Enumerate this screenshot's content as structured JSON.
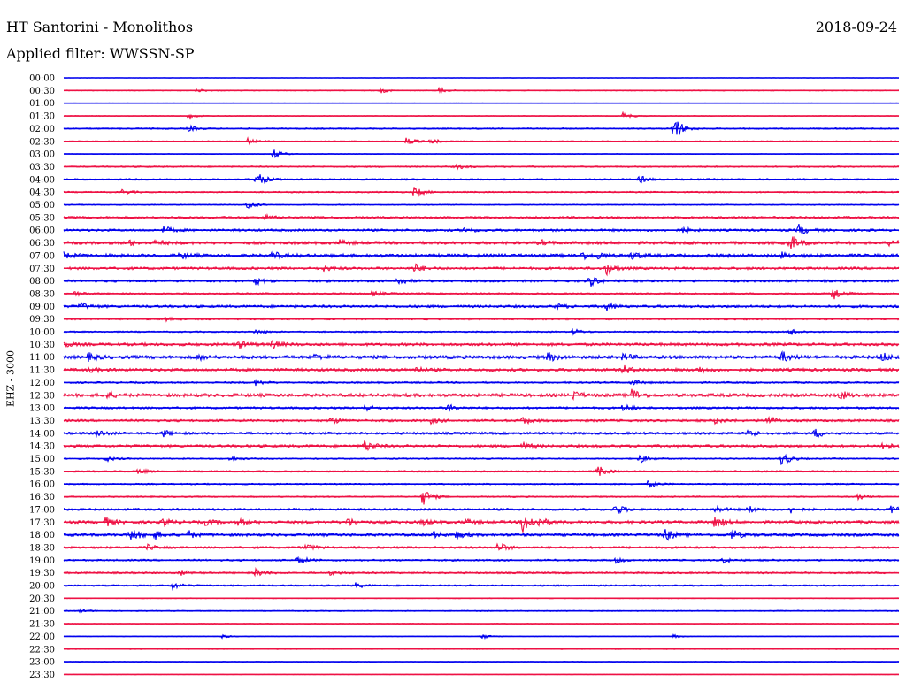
{
  "header": {
    "station": "HT Santorini - Monolithos",
    "date": "2018-09-24",
    "filter": "Applied filter: WWSSN-SP"
  },
  "chart_data": {
    "type": "line",
    "title": "HT Santorini - Monolithos",
    "subtitle": "Applied filter: WWSSN-SP",
    "ylabel": "EHZ - 3000",
    "xlabel": "",
    "grid": false,
    "series_colors": [
      "#0000ee",
      "#ee1144"
    ],
    "rows": [
      {
        "label": "00:00",
        "noise": 0.2,
        "events": []
      },
      {
        "label": "00:30",
        "noise": 0.5,
        "events": [
          [
            16,
            2
          ],
          [
            38,
            2.5
          ],
          [
            45,
            3
          ]
        ]
      },
      {
        "label": "01:00",
        "noise": 0.3,
        "events": []
      },
      {
        "label": "01:30",
        "noise": 0.4,
        "events": [
          [
            15,
            3
          ],
          [
            67,
            4
          ]
        ]
      },
      {
        "label": "02:00",
        "noise": 0.8,
        "events": [
          [
            15,
            3
          ],
          [
            73,
            16
          ]
        ]
      },
      {
        "label": "02:30",
        "noise": 0.6,
        "events": [
          [
            22,
            4
          ],
          [
            41,
            5
          ],
          [
            44,
            3
          ]
        ]
      },
      {
        "label": "03:00",
        "noise": 0.4,
        "events": [
          [
            25,
            6
          ]
        ]
      },
      {
        "label": "03:30",
        "noise": 0.8,
        "events": [
          [
            47,
            3
          ]
        ]
      },
      {
        "label": "04:00",
        "noise": 0.9,
        "events": [
          [
            23,
            10
          ],
          [
            69,
            4
          ]
        ]
      },
      {
        "label": "04:30",
        "noise": 0.8,
        "events": [
          [
            7,
            3
          ],
          [
            42,
            6
          ]
        ]
      },
      {
        "label": "05:00",
        "noise": 0.6,
        "events": [
          [
            22,
            5
          ]
        ]
      },
      {
        "label": "05:30",
        "noise": 1.2,
        "events": [
          [
            24,
            3
          ]
        ]
      },
      {
        "label": "06:00",
        "noise": 1.3,
        "events": [
          [
            12,
            4
          ],
          [
            48,
            3
          ],
          [
            74,
            3
          ],
          [
            88,
            6
          ]
        ]
      },
      {
        "label": "06:30",
        "noise": 1.6,
        "events": [
          [
            8,
            3
          ],
          [
            11,
            3
          ],
          [
            33,
            3
          ],
          [
            57,
            3
          ],
          [
            87,
            10
          ],
          [
            99,
            4
          ]
        ]
      },
      {
        "label": "07:00",
        "noise": 1.8,
        "events": [
          [
            0,
            3
          ],
          [
            14,
            3
          ],
          [
            25,
            4
          ],
          [
            62,
            4
          ],
          [
            64,
            3
          ],
          [
            68,
            4
          ],
          [
            86,
            3
          ]
        ]
      },
      {
        "label": "07:30",
        "noise": 1.4,
        "events": [
          [
            31,
            3
          ],
          [
            42,
            5
          ],
          [
            65,
            7
          ]
        ]
      },
      {
        "label": "08:00",
        "noise": 1.3,
        "events": [
          [
            23,
            4
          ],
          [
            40,
            4
          ],
          [
            63,
            6
          ]
        ]
      },
      {
        "label": "08:30",
        "noise": 1.0,
        "events": [
          [
            1,
            3
          ],
          [
            37,
            3
          ],
          [
            92,
            9
          ]
        ]
      },
      {
        "label": "09:00",
        "noise": 1.4,
        "events": [
          [
            2,
            4
          ],
          [
            59,
            3
          ],
          [
            65,
            4
          ]
        ]
      },
      {
        "label": "09:30",
        "noise": 1.0,
        "events": [
          [
            12,
            3
          ]
        ]
      },
      {
        "label": "10:00",
        "noise": 0.8,
        "events": [
          [
            23,
            3
          ],
          [
            61,
            3
          ],
          [
            87,
            4
          ]
        ]
      },
      {
        "label": "10:30",
        "noise": 1.6,
        "events": [
          [
            0,
            3
          ],
          [
            21,
            4
          ],
          [
            25,
            4
          ]
        ]
      },
      {
        "label": "11:00",
        "noise": 1.8,
        "events": [
          [
            3,
            4
          ],
          [
            16,
            3
          ],
          [
            30,
            3
          ],
          [
            58,
            5
          ],
          [
            67,
            4
          ],
          [
            86,
            6
          ],
          [
            98,
            5
          ]
        ]
      },
      {
        "label": "11:30",
        "noise": 1.6,
        "events": [
          [
            3,
            3
          ],
          [
            42,
            3
          ],
          [
            67,
            5
          ],
          [
            76,
            4
          ]
        ]
      },
      {
        "label": "12:00",
        "noise": 1.0,
        "events": [
          [
            23,
            3
          ],
          [
            68,
            3
          ]
        ]
      },
      {
        "label": "12:30",
        "noise": 1.8,
        "events": [
          [
            5,
            4
          ],
          [
            61,
            4
          ],
          [
            68,
            7
          ],
          [
            93,
            5
          ]
        ]
      },
      {
        "label": "13:00",
        "noise": 1.2,
        "events": [
          [
            36,
            4
          ],
          [
            46,
            4
          ],
          [
            67,
            4
          ]
        ]
      },
      {
        "label": "13:30",
        "noise": 1.3,
        "events": [
          [
            32,
            4
          ],
          [
            44,
            3
          ],
          [
            55,
            4
          ],
          [
            78,
            3
          ],
          [
            84,
            6
          ]
        ]
      },
      {
        "label": "14:00",
        "noise": 1.3,
        "events": [
          [
            4,
            4
          ],
          [
            12,
            4
          ],
          [
            82,
            4
          ],
          [
            90,
            5
          ]
        ]
      },
      {
        "label": "14:30",
        "noise": 1.4,
        "events": [
          [
            36,
            7
          ],
          [
            55,
            3
          ],
          [
            98,
            4
          ]
        ]
      },
      {
        "label": "15:00",
        "noise": 0.8,
        "events": [
          [
            5,
            3
          ],
          [
            20,
            3
          ],
          [
            69,
            5
          ],
          [
            86,
            8
          ]
        ]
      },
      {
        "label": "15:30",
        "noise": 0.9,
        "events": [
          [
            9,
            3
          ],
          [
            64,
            6
          ]
        ]
      },
      {
        "label": "16:00",
        "noise": 0.8,
        "events": [
          [
            70,
            4
          ]
        ]
      },
      {
        "label": "16:30",
        "noise": 0.8,
        "events": [
          [
            43,
            10
          ],
          [
            95,
            4
          ]
        ]
      },
      {
        "label": "17:00",
        "noise": 1.2,
        "events": [
          [
            66,
            7
          ],
          [
            78,
            4
          ],
          [
            82,
            4
          ],
          [
            87,
            4
          ],
          [
            99,
            4
          ]
        ]
      },
      {
        "label": "17:30",
        "noise": 1.5,
        "events": [
          [
            5,
            5
          ],
          [
            12,
            4
          ],
          [
            17,
            3
          ],
          [
            21,
            3
          ],
          [
            34,
            4
          ],
          [
            43,
            3
          ],
          [
            48,
            3
          ],
          [
            55,
            13
          ],
          [
            57,
            4
          ],
          [
            78,
            7
          ]
        ]
      },
      {
        "label": "18:00",
        "noise": 1.6,
        "events": [
          [
            8,
            8
          ],
          [
            11,
            4
          ],
          [
            15,
            4
          ],
          [
            44,
            4
          ],
          [
            47,
            4
          ],
          [
            72,
            7
          ],
          [
            80,
            6
          ]
        ]
      },
      {
        "label": "18:30",
        "noise": 1.2,
        "events": [
          [
            10,
            3
          ],
          [
            29,
            4
          ],
          [
            52,
            6
          ]
        ]
      },
      {
        "label": "19:00",
        "noise": 1.0,
        "events": [
          [
            28,
            5
          ],
          [
            66,
            3
          ],
          [
            79,
            3
          ]
        ]
      },
      {
        "label": "19:30",
        "noise": 1.0,
        "events": [
          [
            14,
            3
          ],
          [
            23,
            4
          ],
          [
            32,
            3
          ]
        ]
      },
      {
        "label": "20:00",
        "noise": 0.9,
        "events": [
          [
            13,
            4
          ],
          [
            35,
            3
          ]
        ]
      },
      {
        "label": "20:30",
        "noise": 0.4,
        "events": []
      },
      {
        "label": "21:00",
        "noise": 0.6,
        "events": [
          [
            2,
            2
          ]
        ]
      },
      {
        "label": "21:30",
        "noise": 0.4,
        "events": []
      },
      {
        "label": "22:00",
        "noise": 0.3,
        "events": [
          [
            19,
            2
          ],
          [
            50,
            3
          ],
          [
            73,
            2
          ]
        ]
      },
      {
        "label": "22:30",
        "noise": 0.5,
        "events": []
      },
      {
        "label": "23:00",
        "noise": 0.4,
        "events": []
      },
      {
        "label": "23:30",
        "noise": 0.2,
        "events": []
      }
    ]
  }
}
